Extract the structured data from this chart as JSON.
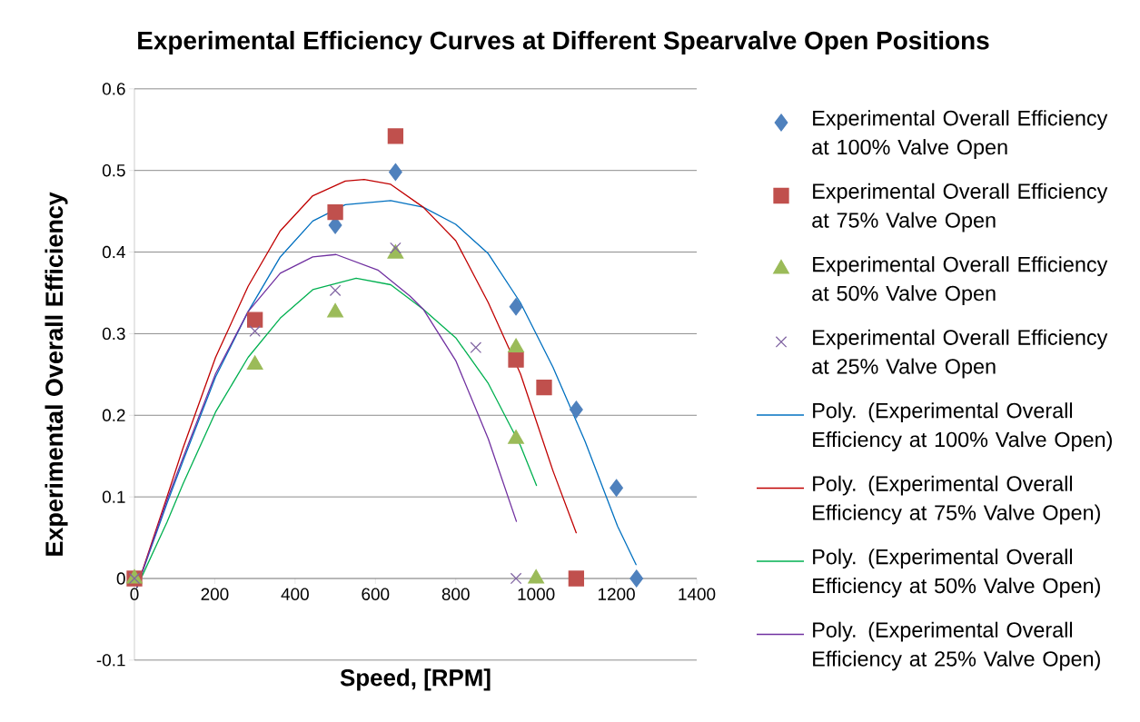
{
  "chart_data": {
    "type": "scatter",
    "title": "Experimental Efficiency Curves at Different Spearvalve Open Positions",
    "xlabel": "Speed, [RPM]",
    "ylabel": "Experimental Overall Efficiency",
    "xlim": [
      0,
      1400
    ],
    "xticks": [
      0,
      200,
      400,
      600,
      800,
      1000,
      1200,
      1400
    ],
    "ylim": [
      -0.1,
      0.6
    ],
    "yticks": [
      -0.1,
      0,
      0.1,
      0.2,
      0.3,
      0.4,
      0.5,
      0.6
    ],
    "grid": "y",
    "legend": "right",
    "series": [
      {
        "name": "Experimental Overall Efficiency at 100% Valve Open",
        "marker": "diamond",
        "color": "#4f81bd",
        "x": [
          500,
          650,
          950,
          1100,
          1200,
          1250
        ],
        "values": [
          0.433,
          0.498,
          0.333,
          0.207,
          0.111,
          0
        ]
      },
      {
        "name": "Experimental Overall Efficiency at 75% Valve Open",
        "marker": "square",
        "color": "#c0504d",
        "x": [
          0,
          300,
          500,
          650,
          950,
          1020,
          1100
        ],
        "values": [
          0,
          0.317,
          0.449,
          0.542,
          0.268,
          0.234,
          0
        ]
      },
      {
        "name": "Experimental Overall Efficiency at 50% Valve Open",
        "marker": "triangle",
        "color": "#9bbb59",
        "x": [
          0,
          300,
          500,
          650,
          950,
          950,
          1000
        ],
        "values": [
          0,
          0.262,
          0.326,
          0.398,
          0.283,
          0.171,
          0
        ]
      },
      {
        "name": "Experimental Overall Efficiency at 25% Valve Open",
        "marker": "cross",
        "color": "#8064a2",
        "x": [
          0,
          300,
          500,
          650,
          850,
          950
        ],
        "values": [
          0,
          0.303,
          0.353,
          0.405,
          0.283,
          0
        ]
      },
      {
        "name": "Poly. (Experimental Overall Efficiency at 100% Valve Open)",
        "type": "line",
        "color": "#0070c0",
        "x": [
          6,
          81,
          121,
          202,
          283,
          363,
          444,
          525,
          638,
          719,
          800,
          881,
          961,
          1042,
          1122,
          1203,
          1249
        ],
        "values": [
          -0.011,
          0.092,
          0.144,
          0.247,
          0.327,
          0.394,
          0.438,
          0.458,
          0.463,
          0.455,
          0.434,
          0.398,
          0.338,
          0.259,
          0.168,
          0.064,
          0.017
        ]
      },
      {
        "name": "Poly. (Experimental Overall Efficiency at 75% Valve Open)",
        "type": "line",
        "color": "#c00000",
        "x": [
          6,
          81,
          121,
          202,
          283,
          363,
          444,
          525,
          572,
          638,
          719,
          800,
          881,
          961,
          1042,
          1100
        ],
        "values": [
          -0.011,
          0.1,
          0.16,
          0.271,
          0.358,
          0.426,
          0.469,
          0.487,
          0.489,
          0.483,
          0.455,
          0.414,
          0.338,
          0.251,
          0.132,
          0.056
        ]
      },
      {
        "name": "Poly. (Experimental Overall Efficiency at 50% Valve Open)",
        "type": "line",
        "color": "#00b050",
        "x": [
          6,
          81,
          121,
          202,
          283,
          363,
          444,
          552,
          638,
          719,
          800,
          881,
          961,
          1001
        ],
        "values": [
          -0.011,
          0.069,
          0.116,
          0.204,
          0.271,
          0.319,
          0.354,
          0.368,
          0.36,
          0.33,
          0.295,
          0.239,
          0.163,
          0.114
        ]
      },
      {
        "name": "Poly. (Experimental Overall Efficiency at 25% Valve Open)",
        "type": "line",
        "color": "#7030a0",
        "x": [
          6,
          81,
          121,
          202,
          283,
          363,
          444,
          502,
          606,
          686,
          719,
          800,
          881,
          951
        ],
        "values": [
          -0.011,
          0.096,
          0.148,
          0.251,
          0.327,
          0.374,
          0.394,
          0.397,
          0.378,
          0.346,
          0.33,
          0.267,
          0.171,
          0.07
        ]
      }
    ]
  }
}
